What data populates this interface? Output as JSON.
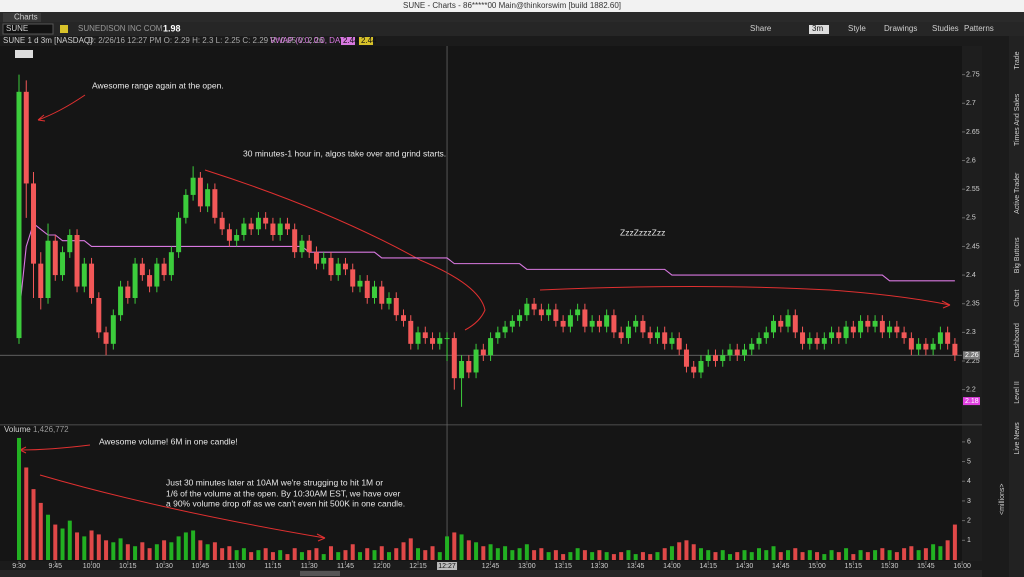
{
  "window": {
    "title": "SUNE - Charts - 86*****00 Main@thinkorswim [build 1882.60]",
    "tab": "Charts",
    "symbol": "SUNE",
    "company": "SUNEDISON INC COM",
    "price": "1.98",
    "toolbar": [
      "Share",
      "3m",
      "Style",
      "Drawings",
      "Studies",
      "Patterns"
    ],
    "header": "SUNE 1 d 3m [NASDAQ]",
    "cursor_info": "D: 2/26/16 12:27 PM  O: 2.29  H: 2.3  L: 2.25  C: 2.29  R: 0.05  V: 2.26",
    "study": "VWAP (0.0, 0.0, DAY)",
    "study_values": [
      "2.44",
      "2.44"
    ],
    "side_tabs": [
      "Trade",
      "Times And Sales",
      "Active Trader",
      "Big Buttons",
      "Chart",
      "Dashboard",
      "Level II",
      "Live News"
    ]
  },
  "chart_data": {
    "type": "candlestick",
    "title": "SUNE",
    "ylim": [
      2.14,
      2.8
    ],
    "yticks": [
      2.2,
      2.25,
      2.3,
      2.35,
      2.4,
      2.45,
      2.5,
      2.55,
      2.6,
      2.65,
      2.7,
      2.75
    ],
    "up_color": "#3ccc3c",
    "down_color": "#f25858",
    "vwap_color": "#d878e0",
    "open": [
      2.29,
      2.72,
      2.56,
      2.42,
      2.36,
      2.46,
      2.4,
      2.44,
      2.47,
      2.38,
      2.42,
      2.36,
      2.3,
      2.28,
      2.33,
      2.38,
      2.36,
      2.42,
      2.4,
      2.38,
      2.42,
      2.4,
      2.44,
      2.5,
      2.54,
      2.57,
      2.52,
      2.55,
      2.5,
      2.48,
      2.46,
      2.47,
      2.49,
      2.48,
      2.5,
      2.49,
      2.47,
      2.49,
      2.48,
      2.44,
      2.46,
      2.44,
      2.42,
      2.43,
      2.4,
      2.42,
      2.41,
      2.38,
      2.39,
      2.36,
      2.38,
      2.35,
      2.36,
      2.33,
      2.32,
      2.28,
      2.3,
      2.29,
      2.28,
      2.29,
      2.29,
      2.22,
      2.25,
      2.23,
      2.27,
      2.26,
      2.29,
      2.3,
      2.31,
      2.32,
      2.33,
      2.35,
      2.34,
      2.33,
      2.34,
      2.32,
      2.31,
      2.33,
      2.34,
      2.31,
      2.32,
      2.31,
      2.33,
      2.3,
      2.29,
      2.31,
      2.32,
      2.3,
      2.29,
      2.3,
      2.28,
      2.29,
      2.27,
      2.24,
      2.23,
      2.25,
      2.26,
      2.25,
      2.26,
      2.27,
      2.26,
      2.27,
      2.28,
      2.29,
      2.3,
      2.32,
      2.31,
      2.33,
      2.3,
      2.28,
      2.29,
      2.28,
      2.29,
      2.3,
      2.29,
      2.31,
      2.3,
      2.32,
      2.31,
      2.32,
      2.3,
      2.31,
      2.3,
      2.29,
      2.27,
      2.28,
      2.27,
      2.28,
      2.3,
      2.28
    ],
    "high": [
      2.75,
      2.74,
      2.58,
      2.44,
      2.49,
      2.47,
      2.45,
      2.48,
      2.48,
      2.43,
      2.43,
      2.37,
      2.31,
      2.34,
      2.39,
      2.39,
      2.43,
      2.43,
      2.41,
      2.43,
      2.43,
      2.45,
      2.51,
      2.55,
      2.59,
      2.58,
      2.56,
      2.56,
      2.51,
      2.49,
      2.48,
      2.5,
      2.5,
      2.51,
      2.51,
      2.5,
      2.5,
      2.5,
      2.49,
      2.47,
      2.47,
      2.45,
      2.44,
      2.44,
      2.43,
      2.43,
      2.42,
      2.4,
      2.4,
      2.39,
      2.39,
      2.37,
      2.37,
      2.34,
      2.33,
      2.31,
      2.31,
      2.3,
      2.3,
      2.3,
      2.3,
      2.26,
      2.26,
      2.28,
      2.28,
      2.3,
      2.31,
      2.32,
      2.33,
      2.34,
      2.36,
      2.36,
      2.35,
      2.35,
      2.35,
      2.33,
      2.34,
      2.35,
      2.35,
      2.33,
      2.33,
      2.34,
      2.34,
      2.31,
      2.32,
      2.33,
      2.33,
      2.31,
      2.31,
      2.31,
      2.3,
      2.3,
      2.28,
      2.25,
      2.26,
      2.27,
      2.27,
      2.27,
      2.28,
      2.28,
      2.28,
      2.29,
      2.3,
      2.31,
      2.33,
      2.33,
      2.34,
      2.34,
      2.31,
      2.3,
      2.3,
      2.3,
      2.31,
      2.31,
      2.32,
      2.32,
      2.33,
      2.33,
      2.33,
      2.33,
      2.32,
      2.32,
      2.31,
      2.3,
      2.29,
      2.29,
      2.29,
      2.31,
      2.31,
      2.29
    ],
    "low": [
      2.28,
      2.5,
      2.36,
      2.34,
      2.35,
      2.39,
      2.39,
      2.43,
      2.37,
      2.37,
      2.35,
      2.29,
      2.26,
      2.27,
      2.32,
      2.35,
      2.35,
      2.39,
      2.37,
      2.37,
      2.39,
      2.39,
      2.43,
      2.49,
      2.53,
      2.51,
      2.51,
      2.49,
      2.47,
      2.45,
      2.45,
      2.46,
      2.47,
      2.47,
      2.48,
      2.46,
      2.46,
      2.47,
      2.43,
      2.43,
      2.43,
      2.41,
      2.41,
      2.39,
      2.39,
      2.4,
      2.37,
      2.37,
      2.35,
      2.35,
      2.34,
      2.34,
      2.32,
      2.31,
      2.27,
      2.27,
      2.28,
      2.27,
      2.27,
      2.25,
      2.2,
      2.17,
      2.22,
      2.22,
      2.25,
      2.25,
      2.28,
      2.29,
      2.3,
      2.31,
      2.32,
      2.33,
      2.32,
      2.32,
      2.31,
      2.3,
      2.3,
      2.32,
      2.3,
      2.3,
      2.3,
      2.3,
      2.29,
      2.28,
      2.28,
      2.3,
      2.29,
      2.28,
      2.28,
      2.27,
      2.27,
      2.26,
      2.23,
      2.22,
      2.22,
      2.24,
      2.24,
      2.24,
      2.25,
      2.25,
      2.25,
      2.26,
      2.27,
      2.28,
      2.29,
      2.3,
      2.3,
      2.29,
      2.27,
      2.27,
      2.27,
      2.27,
      2.28,
      2.28,
      2.28,
      2.29,
      2.29,
      2.3,
      2.3,
      2.29,
      2.29,
      2.29,
      2.28,
      2.26,
      2.26,
      2.26,
      2.26,
      2.27,
      2.27,
      2.25
    ],
    "close": [
      2.72,
      2.56,
      2.42,
      2.36,
      2.46,
      2.4,
      2.44,
      2.47,
      2.38,
      2.42,
      2.36,
      2.3,
      2.28,
      2.33,
      2.38,
      2.36,
      2.42,
      2.4,
      2.38,
      2.42,
      2.4,
      2.44,
      2.5,
      2.54,
      2.57,
      2.52,
      2.55,
      2.5,
      2.48,
      2.46,
      2.47,
      2.49,
      2.48,
      2.5,
      2.49,
      2.47,
      2.49,
      2.48,
      2.44,
      2.46,
      2.44,
      2.42,
      2.43,
      2.4,
      2.42,
      2.41,
      2.38,
      2.39,
      2.36,
      2.38,
      2.35,
      2.36,
      2.33,
      2.32,
      2.28,
      2.3,
      2.29,
      2.28,
      2.29,
      2.29,
      2.22,
      2.25,
      2.23,
      2.27,
      2.26,
      2.29,
      2.3,
      2.31,
      2.32,
      2.33,
      2.35,
      2.34,
      2.33,
      2.34,
      2.32,
      2.31,
      2.33,
      2.34,
      2.31,
      2.32,
      2.31,
      2.33,
      2.3,
      2.29,
      2.31,
      2.32,
      2.3,
      2.29,
      2.3,
      2.28,
      2.29,
      2.27,
      2.24,
      2.23,
      2.25,
      2.26,
      2.25,
      2.26,
      2.27,
      2.26,
      2.27,
      2.28,
      2.29,
      2.3,
      2.32,
      2.31,
      2.33,
      2.3,
      2.28,
      2.29,
      2.28,
      2.29,
      2.3,
      2.29,
      2.31,
      2.3,
      2.32,
      2.31,
      2.32,
      2.3,
      2.31,
      2.3,
      2.29,
      2.27,
      2.28,
      2.27,
      2.28,
      2.3,
      2.28,
      2.26
    ],
    "vwap": [
      2.33,
      2.45,
      2.49,
      2.48,
      2.47,
      2.47,
      2.46,
      2.46,
      2.46,
      2.46,
      2.45,
      2.45,
      2.45,
      2.45,
      2.45,
      2.45,
      2.45,
      2.45,
      2.45,
      2.45,
      2.45,
      2.45,
      2.45,
      2.45,
      2.45,
      2.45,
      2.45,
      2.45,
      2.45,
      2.45,
      2.45,
      2.45,
      2.45,
      2.45,
      2.45,
      2.45,
      2.45,
      2.45,
      2.45,
      2.45,
      2.44,
      2.44,
      2.44,
      2.44,
      2.44,
      2.44,
      2.44,
      2.44,
      2.44,
      2.44,
      2.43,
      2.43,
      2.43,
      2.43,
      2.43,
      2.43,
      2.43,
      2.43,
      2.43,
      2.43,
      2.42,
      2.42,
      2.42,
      2.42,
      2.42,
      2.42,
      2.42,
      2.42,
      2.42,
      2.42,
      2.41,
      2.41,
      2.41,
      2.41,
      2.41,
      2.41,
      2.41,
      2.41,
      2.41,
      2.41,
      2.41,
      2.41,
      2.41,
      2.41,
      2.41,
      2.41,
      2.41,
      2.41,
      2.41,
      2.41,
      2.4,
      2.4,
      2.4,
      2.4,
      2.4,
      2.4,
      2.4,
      2.4,
      2.4,
      2.4,
      2.4,
      2.4,
      2.4,
      2.4,
      2.4,
      2.4,
      2.4,
      2.4,
      2.4,
      2.4,
      2.4,
      2.4,
      2.4,
      2.4,
      2.4,
      2.4,
      2.4,
      2.4,
      2.4,
      2.4,
      2.39,
      2.39,
      2.39,
      2.39,
      2.39,
      2.39,
      2.39,
      2.39,
      2.39,
      2.39
    ],
    "price_markers": [
      {
        "value": 2.26,
        "color": "#7a7a7a"
      },
      {
        "value": 2.18,
        "color": "#e040e0"
      }
    ],
    "cursor": {
      "value": 59,
      "label": "12:27"
    },
    "xticks": [
      {
        "value": 0,
        "label": "9:30"
      },
      {
        "value": 5,
        "label": "9:45"
      },
      {
        "value": 10,
        "label": "10:00"
      },
      {
        "value": 15,
        "label": "10:15"
      },
      {
        "value": 20,
        "label": "10:30"
      },
      {
        "value": 25,
        "label": "10:45"
      },
      {
        "value": 30,
        "label": "11:00"
      },
      {
        "value": 35,
        "label": "11:15"
      },
      {
        "value": 40,
        "label": "11:30"
      },
      {
        "value": 45,
        "label": "11:45"
      },
      {
        "value": 50,
        "label": "12:00"
      },
      {
        "value": 55,
        "label": "12:15"
      },
      {
        "value": 65,
        "label": "12:45"
      },
      {
        "value": 70,
        "label": "13:00"
      },
      {
        "value": 75,
        "label": "13:15"
      },
      {
        "value": 80,
        "label": "13:30"
      },
      {
        "value": 85,
        "label": "13:45"
      },
      {
        "value": 90,
        "label": "14:00"
      },
      {
        "value": 95,
        "label": "14:15"
      },
      {
        "value": 100,
        "label": "14:30"
      },
      {
        "value": 105,
        "label": "14:45"
      },
      {
        "value": 110,
        "label": "15:00"
      },
      {
        "value": 115,
        "label": "15:15"
      },
      {
        "value": 120,
        "label": "15:30"
      },
      {
        "value": 125,
        "label": "15:45"
      },
      {
        "value": 130,
        "label": "16:00"
      }
    ],
    "volume_title": "Volume",
    "volume_readout": "1,426,772",
    "volume_unit": "<millions>",
    "volume_ylim": [
      0,
      6.4
    ],
    "volume_yticks": [
      1,
      2,
      3,
      4,
      5,
      6
    ],
    "volume": [
      6.2,
      4.7,
      3.6,
      2.9,
      2.3,
      1.8,
      1.6,
      2.0,
      1.4,
      1.2,
      1.5,
      1.3,
      1.0,
      0.9,
      1.1,
      0.8,
      0.7,
      0.9,
      0.6,
      0.8,
      1.0,
      0.9,
      1.2,
      1.4,
      1.5,
      1.0,
      0.8,
      0.9,
      0.6,
      0.7,
      0.5,
      0.6,
      0.4,
      0.5,
      0.6,
      0.4,
      0.5,
      0.3,
      0.6,
      0.4,
      0.5,
      0.6,
      0.3,
      0.7,
      0.4,
      0.5,
      0.8,
      0.4,
      0.6,
      0.5,
      0.7,
      0.4,
      0.6,
      0.9,
      1.1,
      0.6,
      0.5,
      0.7,
      0.4,
      1.2,
      1.4,
      1.3,
      1.0,
      0.9,
      0.7,
      0.8,
      0.6,
      0.7,
      0.5,
      0.6,
      0.8,
      0.5,
      0.6,
      0.4,
      0.5,
      0.3,
      0.4,
      0.6,
      0.5,
      0.4,
      0.5,
      0.4,
      0.3,
      0.4,
      0.5,
      0.3,
      0.4,
      0.3,
      0.4,
      0.6,
      0.7,
      0.9,
      1.0,
      0.8,
      0.6,
      0.5,
      0.4,
      0.5,
      0.3,
      0.4,
      0.5,
      0.4,
      0.6,
      0.5,
      0.7,
      0.4,
      0.5,
      0.6,
      0.4,
      0.5,
      0.4,
      0.3,
      0.5,
      0.4,
      0.6,
      0.3,
      0.5,
      0.4,
      0.5,
      0.6,
      0.5,
      0.4,
      0.6,
      0.7,
      0.5,
      0.6,
      0.8,
      0.7,
      1.0,
      1.8
    ],
    "annotations": [
      "Awesome range again at the open.",
      "30 minutes-1 hour in, algos take over and grind starts.",
      "ZzzZzzzZzz",
      "Awesome volume! 6M in one candle!",
      "Just 30 minutes later at 10AM we're strugging to hit 1M or",
      "1/6 of the volume at the open.  By 10:30AM EST, we have over",
      "a 90% volume drop off as we can't even hit 500K in one candle."
    ]
  }
}
